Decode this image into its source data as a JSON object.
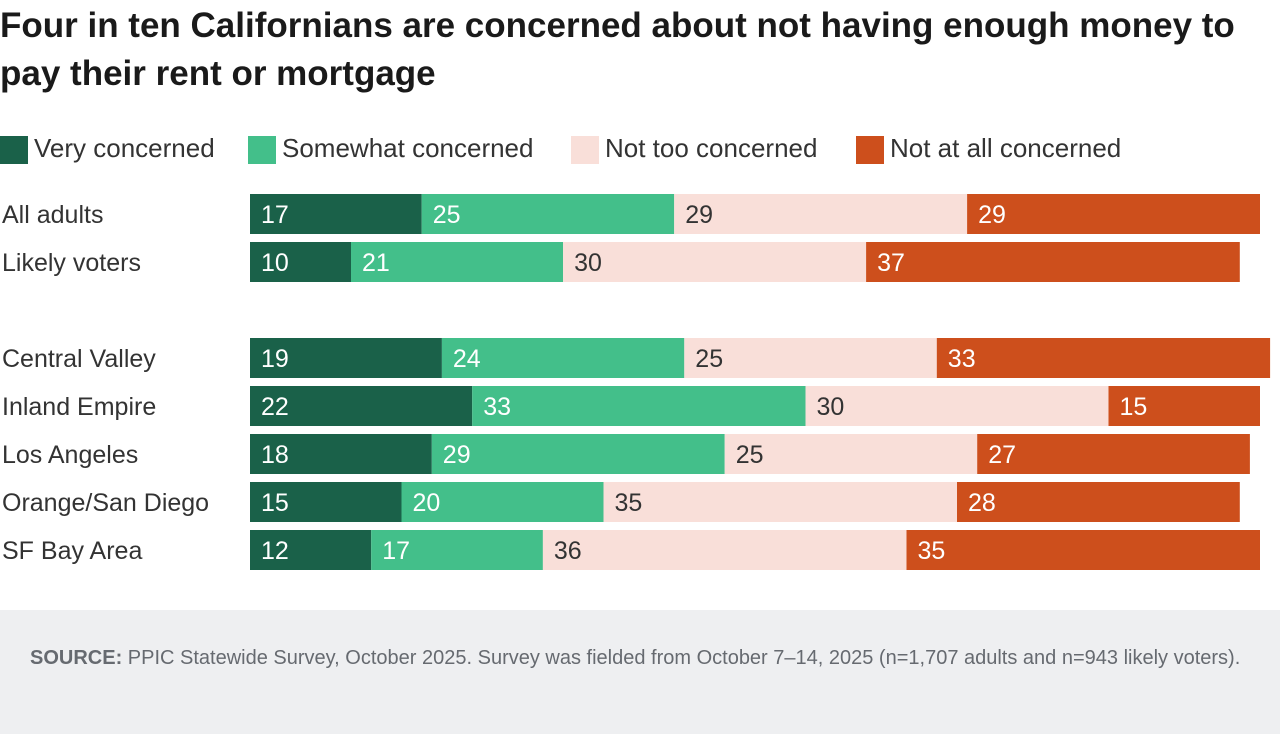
{
  "title": "Four in ten Californians are concerned about not having enough money to pay their rent or mortgage",
  "legend": [
    {
      "label": "Very concerned",
      "color": "#1a6149"
    },
    {
      "label": "Somewhat concerned",
      "color": "#43bf8a"
    },
    {
      "label": "Not too concerned",
      "color": "#f9dfd9"
    },
    {
      "label": "Not at all concerned",
      "color": "#cd4f1c"
    }
  ],
  "chart_data": {
    "type": "bar",
    "orientation": "horizontal",
    "stacked": true,
    "title": "Four in ten Californians are concerned about not having enough money to pay their rent or mortgage",
    "categories": [
      "All adults",
      "Likely voters",
      "Central Valley",
      "Inland Empire",
      "Los Angeles",
      "Orange/San Diego",
      "SF Bay Area"
    ],
    "series": [
      {
        "name": "Very concerned",
        "color": "#1a6149",
        "label_color": "#ffffff",
        "values": [
          17,
          10,
          19,
          22,
          18,
          15,
          12
        ]
      },
      {
        "name": "Somewhat concerned",
        "color": "#43bf8a",
        "label_color": "#ffffff",
        "values": [
          25,
          21,
          24,
          33,
          29,
          20,
          17
        ]
      },
      {
        "name": "Not too concerned",
        "color": "#f9dfd9",
        "label_color": "#333333",
        "values": [
          29,
          30,
          25,
          30,
          25,
          35,
          36
        ]
      },
      {
        "name": "Not at all concerned",
        "color": "#cd4f1c",
        "label_color": "#ffffff",
        "values": [
          29,
          37,
          33,
          15,
          27,
          28,
          35
        ]
      }
    ],
    "xlim": [
      0,
      100
    ],
    "grid": false,
    "legend_position": "top-left"
  },
  "source": {
    "label": "SOURCE:",
    "text": "PPIC Statewide Survey, October 2025. Survey was fielded from October 7–14, 2025 (n=1,707 adults and n=943 likely voters)."
  }
}
